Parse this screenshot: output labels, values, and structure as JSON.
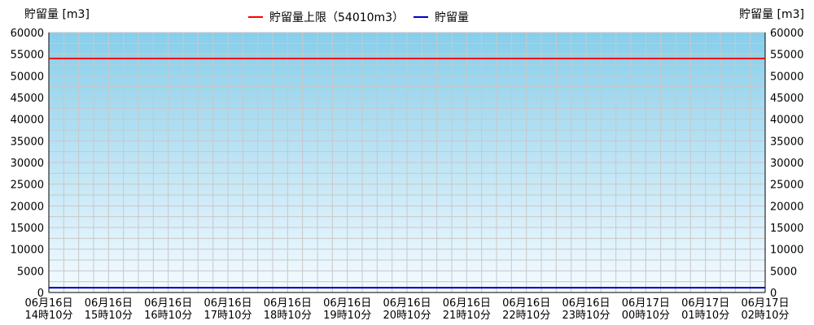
{
  "chart_data": {
    "type": "line",
    "y_axis_left_label": "貯留量 [m3]",
    "y_axis_right_label": "貯留量 [m3]",
    "ylim": [
      0,
      60000
    ],
    "y_ticks": [
      0,
      5000,
      10000,
      15000,
      20000,
      25000,
      30000,
      35000,
      40000,
      45000,
      50000,
      55000,
      60000
    ],
    "x_ticks": [
      [
        "06月16日",
        "14時10分"
      ],
      [
        "06月16日",
        "15時10分"
      ],
      [
        "06月16日",
        "16時10分"
      ],
      [
        "06月16日",
        "17時10分"
      ],
      [
        "06月16日",
        "18時10分"
      ],
      [
        "06月16日",
        "19時10分"
      ],
      [
        "06月16日",
        "20時10分"
      ],
      [
        "06月16日",
        "21時10分"
      ],
      [
        "06月16日",
        "22時10分"
      ],
      [
        "06月16日",
        "23時10分"
      ],
      [
        "06月17日",
        "00時10分"
      ],
      [
        "06月17日",
        "01時10分"
      ],
      [
        "06月17日",
        "02時10分"
      ]
    ],
    "grid": true,
    "legend_position": "top-center",
    "series": [
      {
        "name": "貯留量上限（54010m3）",
        "color": "#ff0000",
        "values": [
          54010,
          54010,
          54010,
          54010,
          54010,
          54010,
          54010,
          54010,
          54010,
          54010,
          54010,
          54010,
          54010
        ]
      },
      {
        "name": "貯留量",
        "color": "#0000cc",
        "values": [
          1100,
          1100,
          1100,
          1100,
          1100,
          1100,
          1100,
          1100,
          1100,
          1100,
          1100,
          1100,
          1100
        ]
      }
    ],
    "background_gradient": [
      "#87ceeb",
      "#f5fbff"
    ]
  }
}
